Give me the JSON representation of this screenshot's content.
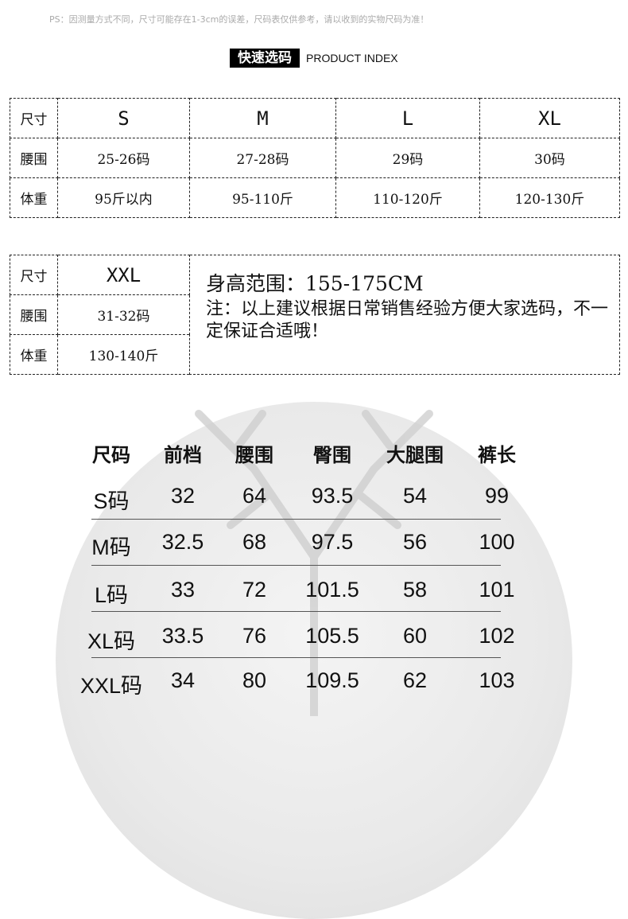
{
  "notice": "PS：因测量方式不同，尺寸可能存在1-3cm的误差，尺码表仅供参考，请以收到的实物尺码为准！",
  "index_title": {
    "cn": "快速选码",
    "en": "PRODUCT INDEX"
  },
  "quick_table": {
    "labels": [
      "尺寸",
      "腰围",
      "体重"
    ],
    "columns": [
      {
        "size": "S",
        "waist": "25-26码",
        "weight": "95斤以内"
      },
      {
        "size": "M",
        "waist": "27-28码",
        "weight": "95-110斤"
      },
      {
        "size": "L",
        "waist": "29码",
        "weight": "110-120斤"
      },
      {
        "size": "XL",
        "waist": "30码",
        "weight": "120-130斤"
      },
      {
        "size": "XXL",
        "waist": "31-32码",
        "weight": "130-140斤"
      }
    ],
    "height_range": "身高范围：155-175CM",
    "note": "注：以上建议根据日常销售经验方便大家选码，不一定保证合适哦！"
  },
  "size_chart": {
    "headers": [
      "尺码",
      "前档",
      "腰围",
      "臀围",
      "大腿围",
      "裤长"
    ],
    "rows": [
      [
        "S码",
        "32",
        "64",
        "93.5",
        "54",
        "99"
      ],
      [
        "M码",
        "32.5",
        "68",
        "97.5",
        "56",
        "100"
      ],
      [
        "L码",
        "33",
        "72",
        "101.5",
        "58",
        "101"
      ],
      [
        "XL码",
        "33.5",
        "76",
        "105.5",
        "60",
        "102"
      ],
      [
        "XXL码",
        "34",
        "80",
        "109.5",
        "62",
        "103"
      ]
    ]
  }
}
